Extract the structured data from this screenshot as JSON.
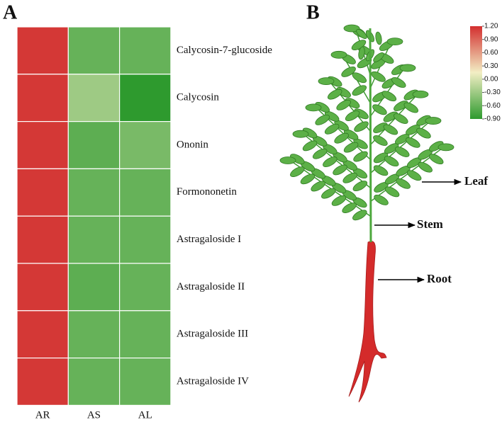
{
  "panel_labels": [
    "A",
    "B"
  ],
  "chart_data": {
    "type": "heatmap",
    "x": [
      "AR",
      "AS",
      "AL"
    ],
    "categories": [
      "Calycosin-7-glucoside",
      "Calycosin",
      "Ononin",
      "Formononetin",
      "Astragaloside I",
      "Astragaloside II",
      "Astragaloside III",
      "Astragaloside IV"
    ],
    "values": [
      [
        1.15,
        -0.6,
        -0.6
      ],
      [
        1.15,
        -0.3,
        -0.9
      ],
      [
        1.15,
        -0.65,
        -0.5
      ],
      [
        1.15,
        -0.6,
        -0.6
      ],
      [
        1.15,
        -0.6,
        -0.6
      ],
      [
        1.15,
        -0.65,
        -0.6
      ],
      [
        1.15,
        -0.6,
        -0.6
      ],
      [
        1.15,
        -0.6,
        -0.6
      ]
    ],
    "clim": [
      -0.9,
      1.2
    ],
    "colormap": [
      "#2e9a2e",
      "#f2eec4",
      "#d32f2f"
    ],
    "cticks": [
      {
        "value": 1.2,
        "label": "1.20"
      },
      {
        "value": 0.9,
        "label": "0.90"
      },
      {
        "value": 0.6,
        "label": "0.60"
      },
      {
        "value": 0.3,
        "label": "0.30"
      },
      {
        "value": 0,
        "label": "0.00"
      },
      {
        "value": -0.3,
        "label": "-0.30"
      },
      {
        "value": -0.6,
        "label": "-0.60"
      },
      {
        "value": -0.9,
        "label": "-0.90"
      }
    ]
  },
  "diagram": {
    "labels": [
      "Leaf",
      "Stem",
      "Root"
    ]
  }
}
